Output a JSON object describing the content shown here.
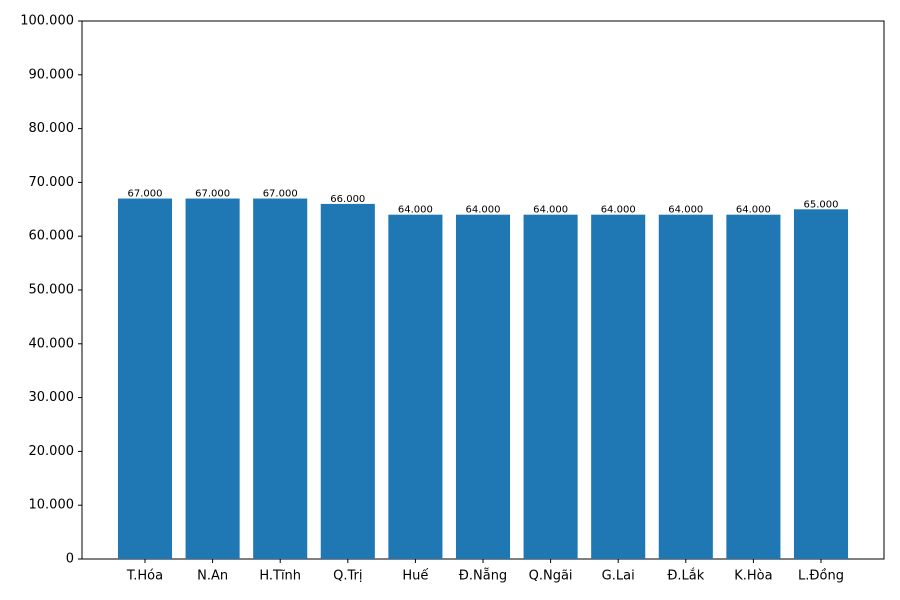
{
  "chart_data": {
    "type": "bar",
    "categories": [
      "T.Hóa",
      "N.An",
      "H.Tĩnh",
      "Q.Trị",
      "Huế",
      "Đ.Nẵng",
      "Q.Ngãi",
      "G.Lai",
      "Đ.Lắk",
      "K.Hòa",
      "L.Đồng"
    ],
    "values": [
      67000,
      67000,
      67000,
      66000,
      64000,
      64000,
      64000,
      64000,
      64000,
      64000,
      65000
    ],
    "value_labels": [
      "67.000",
      "67.000",
      "67.000",
      "66.000",
      "64.000",
      "64.000",
      "64.000",
      "64.000",
      "64.000",
      "64.000",
      "65.000"
    ],
    "color": "#1f77b4",
    "ylim": [
      0,
      100000
    ],
    "yticks": [
      0,
      {
        "value": 10000,
        "label": "10.000"
      },
      {
        "value": 20000,
        "label": "20.000"
      },
      {
        "value": 30000,
        "label": "30.000"
      },
      {
        "value": 40000,
        "label": "40.000"
      },
      {
        "value": 50000,
        "label": "50.000"
      },
      {
        "value": 60000,
        "label": "60.000"
      },
      {
        "value": 70000,
        "label": "70.000"
      },
      {
        "value": 80000,
        "label": "80.000"
      },
      {
        "value": 90000,
        "label": "90.000"
      },
      {
        "value": 100000,
        "label": "100.000"
      }
    ],
    "grid": false
  }
}
